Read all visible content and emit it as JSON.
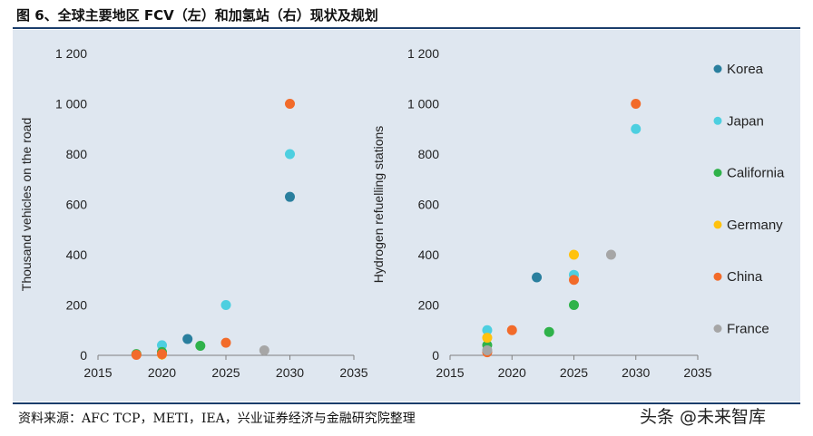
{
  "title": "图 6、全球主要地区 FCV（左）和加氢站（右）现状及规划",
  "source": "资料来源：AFC TCP，METI，IEA，兴业证券经济与金融研究院整理",
  "watermark": "头条 @未来智库",
  "legend": [
    {
      "name": "Korea",
      "color": "#2a7f9e"
    },
    {
      "name": "Japan",
      "color": "#4dcfe0"
    },
    {
      "name": "California",
      "color": "#2fb24a"
    },
    {
      "name": "Germany",
      "color": "#ffc20e"
    },
    {
      "name": "China",
      "color": "#f26b2a"
    },
    {
      "name": "France",
      "color": "#a6a6a6"
    }
  ],
  "chart_data": [
    {
      "type": "scatter",
      "ylabel": "Thousand vehicles on the road",
      "xlim": [
        2015,
        2035
      ],
      "ylim": [
        0,
        1200
      ],
      "xticks": [
        "2015",
        "2020",
        "2025",
        "2030",
        "2035"
      ],
      "yticks": [
        "0",
        "200",
        "400",
        "600",
        "800",
        "1 000",
        "1 200"
      ],
      "series": [
        {
          "name": "Korea",
          "points": [
            [
              2022,
              65
            ],
            [
              2030,
              630
            ]
          ]
        },
        {
          "name": "Japan",
          "points": [
            [
              2020,
              40
            ],
            [
              2025,
              200
            ],
            [
              2030,
              800
            ]
          ]
        },
        {
          "name": "California",
          "points": [
            [
              2018,
              5
            ],
            [
              2020,
              13
            ],
            [
              2023,
              38
            ]
          ]
        },
        {
          "name": "Germany",
          "points": [
            [
              2020,
              3
            ]
          ]
        },
        {
          "name": "China",
          "points": [
            [
              2018,
              2
            ],
            [
              2020,
              5
            ],
            [
              2025,
              50
            ],
            [
              2030,
              1000
            ]
          ]
        },
        {
          "name": "France",
          "points": [
            [
              2028,
              20
            ]
          ]
        }
      ]
    },
    {
      "type": "scatter",
      "ylabel": "Hydrogen refuelling stations",
      "xlim": [
        2015,
        2035
      ],
      "ylim": [
        0,
        1200
      ],
      "xticks": [
        "2015",
        "2020",
        "2025",
        "2030",
        "2035"
      ],
      "yticks": [
        "0",
        "200",
        "400",
        "600",
        "800",
        "1 000",
        "1 200"
      ],
      "series": [
        {
          "name": "Korea",
          "points": [
            [
              2022,
              310
            ]
          ]
        },
        {
          "name": "Japan",
          "points": [
            [
              2018,
              100
            ],
            [
              2025,
              320
            ],
            [
              2030,
              900
            ]
          ]
        },
        {
          "name": "California",
          "points": [
            [
              2018,
              40
            ],
            [
              2023,
              93
            ],
            [
              2025,
              200
            ]
          ]
        },
        {
          "name": "Germany",
          "points": [
            [
              2018,
              70
            ],
            [
              2025,
              400
            ]
          ]
        },
        {
          "name": "China",
          "points": [
            [
              2018,
              12
            ],
            [
              2020,
              100
            ],
            [
              2025,
              300
            ],
            [
              2030,
              1000
            ]
          ]
        },
        {
          "name": "France",
          "points": [
            [
              2018,
              20
            ],
            [
              2028,
              400
            ]
          ]
        }
      ]
    }
  ]
}
